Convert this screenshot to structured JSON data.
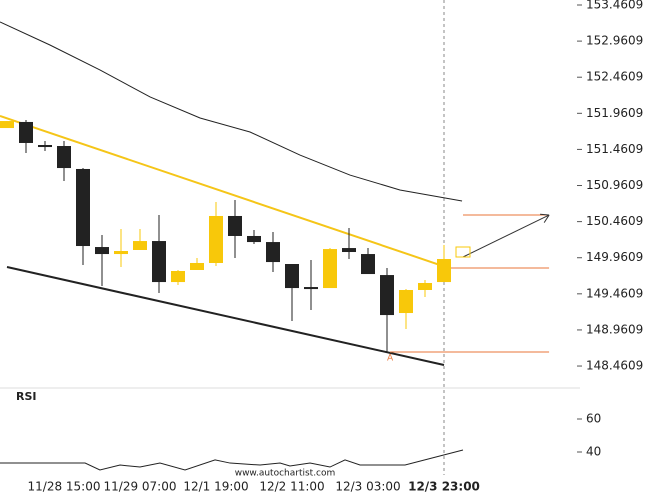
{
  "chart_data": {
    "type": "candlestick",
    "categories": [
      null,
      null,
      null,
      "11/28 15:00",
      null,
      null,
      null,
      "11/29 07:00",
      null,
      null,
      null,
      "12/1 19:00",
      null,
      null,
      null,
      "12/2 11:00",
      null,
      null,
      null,
      "12/3 03:00",
      null,
      null,
      null,
      "12/3 23:00"
    ],
    "highlight_category": 23,
    "open": [
      151.757,
      151.841,
      151.522,
      151.508,
      151.19,
      150.109,
      150.012,
      150.068,
      150.192,
      149.624,
      149.791,
      149.888,
      150.539,
      150.262,
      150.178,
      149.874,
      149.555,
      149.541,
      150.095,
      150.012,
      149.721,
      149.195,
      149.514,
      149.624
    ],
    "high": [
      151.854,
      151.868,
      151.577,
      151.577,
      151.203,
      150.275,
      150.359,
      150.359,
      150.552,
      149.791,
      149.957,
      150.732,
      150.76,
      150.345,
      150.317,
      149.874,
      149.929,
      150.095,
      150.372,
      150.095,
      149.818,
      149.527,
      149.652,
      150.137
    ],
    "low": [
      151.757,
      151.411,
      151.439,
      151.023,
      149.86,
      149.569,
      149.832,
      150.068,
      149.472,
      149.583,
      149.791,
      149.846,
      149.957,
      150.151,
      149.763,
      149.084,
      149.237,
      149.541,
      149.943,
      149.735,
      148.655,
      148.973,
      149.417,
      149.624
    ],
    "close": [
      151.854,
      151.55,
      151.494,
      151.203,
      150.123,
      150.012,
      150.054,
      150.192,
      149.624,
      149.777,
      149.888,
      150.539,
      150.262,
      150.178,
      149.901,
      149.541,
      149.527,
      150.081,
      150.04,
      149.735,
      149.167,
      149.514,
      149.611,
      149.943
    ],
    "up_color": "#f8c80a",
    "down_color": "#222222",
    "ylim": [
      148.1609,
      153.4609
    ],
    "yticks": [
      153.4609,
      152.9609,
      152.4609,
      151.9609,
      151.4609,
      150.9609,
      150.4609,
      149.9609,
      149.4609,
      148.9609,
      148.4609
    ],
    "moving_average": {
      "color": "#222222",
      "x": [
        -0.37,
        2.26,
        4.89,
        7.53,
        10.16,
        12.79,
        15.42,
        18.05,
        20.68,
        23.95
      ],
      "values": [
        153.226,
        152.907,
        152.561,
        152.187,
        151.896,
        151.702,
        151.383,
        151.106,
        150.899,
        150.746
      ]
    },
    "trend_lines": [
      {
        "color": "#f5c518",
        "x": [
          -0.37,
          22.79
        ],
        "values": [
          151.924,
          149.86
        ]
      },
      {
        "color": "#222222",
        "x": [
          0,
          23
        ],
        "values": [
          149.832,
          148.475
        ]
      }
    ],
    "levels": [
      {
        "color": "#e8763a",
        "value": 150.552,
        "x": [
          24,
          28.53
        ]
      },
      {
        "color": "#e8763a",
        "value": 149.818,
        "x": [
          23,
          28.53
        ]
      },
      {
        "color": "#e8763a",
        "value": 148.655,
        "x": [
          20.16,
          28.53
        ]
      }
    ],
    "forecast_arrow": {
      "color": "#333333",
      "x": [
        24,
        28.53
      ],
      "values": [
        149.971,
        150.552
      ]
    },
    "annotation": {
      "text": "A",
      "x": 20.16,
      "value": 148.575
    },
    "rsi": {
      "label": "RSI",
      "color": "#222222",
      "ylim": [
        20,
        80
      ],
      "yticks": [
        60,
        40
      ],
      "x": [
        -0.37,
        4.11,
        4.89,
        5.95,
        7.0,
        8.05,
        9.37,
        10.95,
        11.74,
        13.32,
        14.37,
        14.89,
        15.95,
        17.0,
        17.79,
        18.58,
        20.95,
        24.0
      ],
      "values": [
        33.3,
        33.3,
        29.1,
        32.1,
        30.9,
        33.3,
        29.1,
        35.2,
        33.3,
        32.1,
        33.3,
        31.5,
        33.3,
        30.9,
        35.2,
        32.1,
        32.1,
        41.2
      ]
    },
    "watermark": "www.autochartist.com"
  }
}
